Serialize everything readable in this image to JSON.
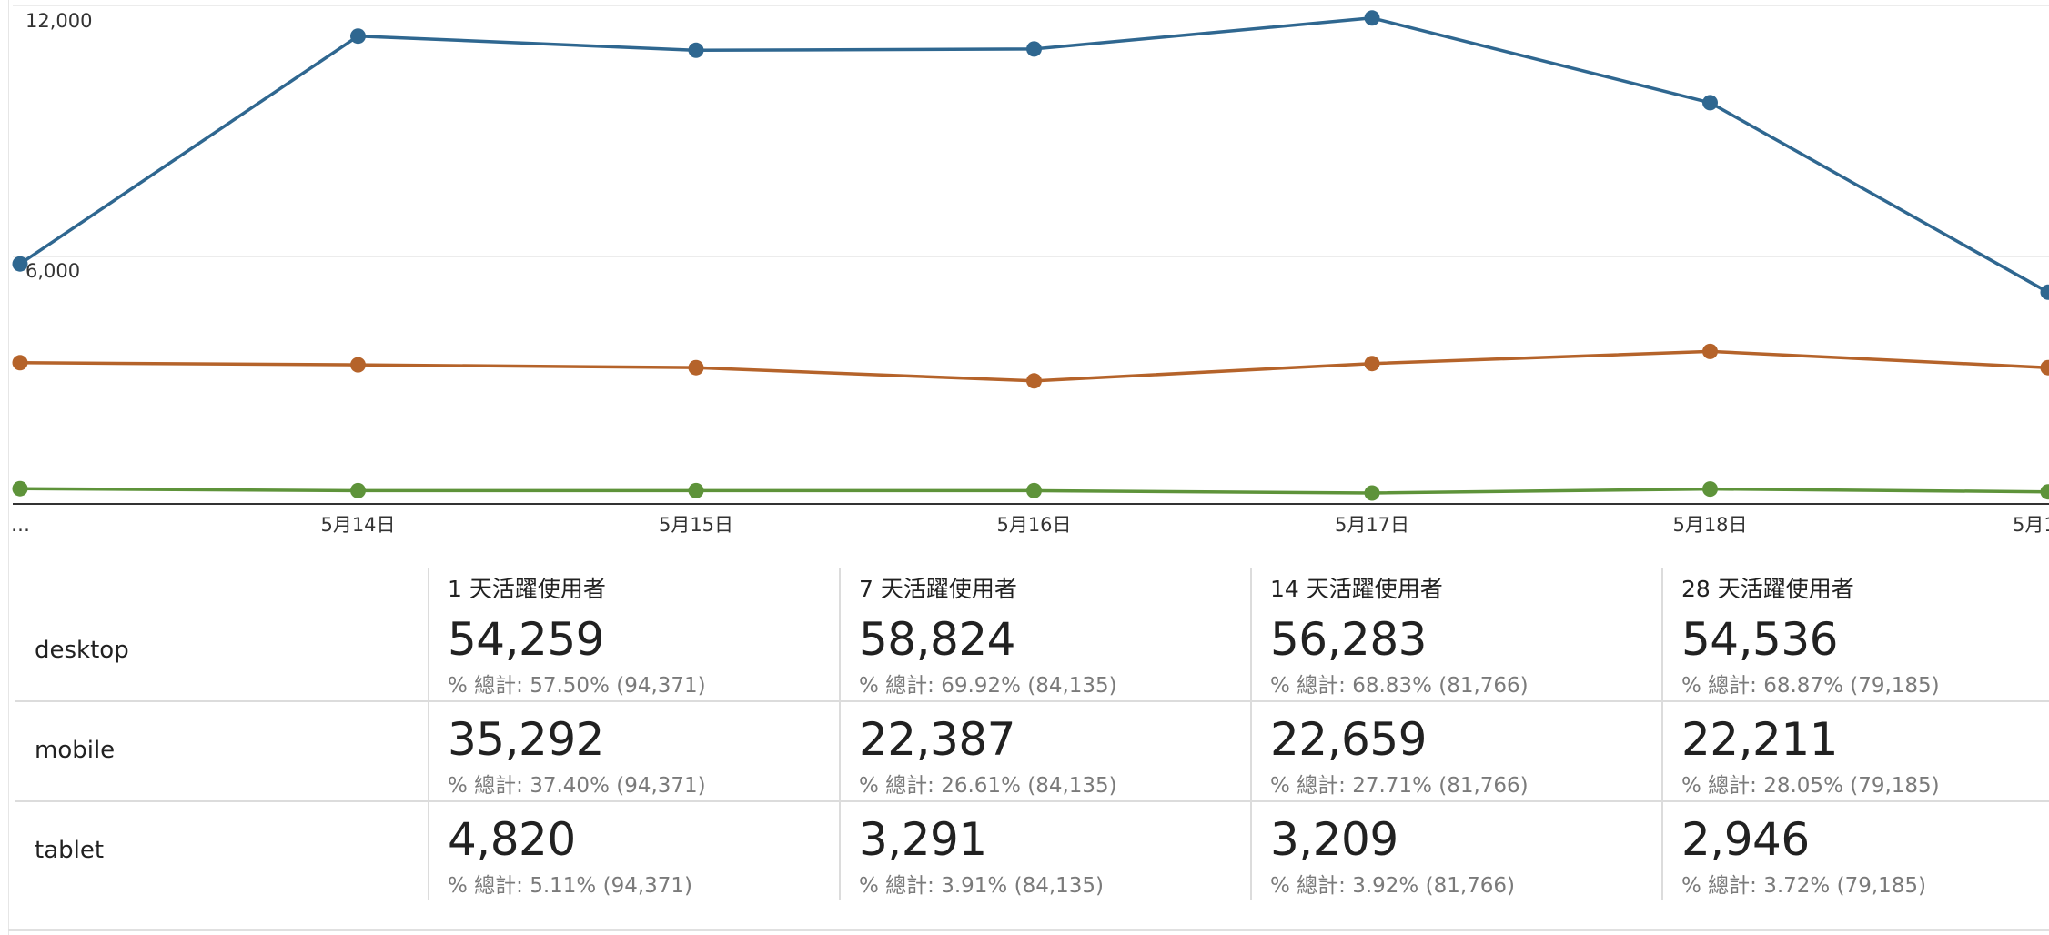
{
  "chart_data": {
    "type": "line",
    "x": [
      "…",
      "5月14日",
      "5月15日",
      "5月16日",
      "5月17日",
      "5月18日",
      "5月1"
    ],
    "y_ticks": [
      "12,000",
      "6,000"
    ],
    "ylim": [
      0,
      12500
    ],
    "grid": true,
    "series": [
      {
        "color": "#2f6790",
        "values": [
          5950,
          11600,
          11250,
          11280,
          12050,
          9950,
          5250
        ]
      },
      {
        "color": "#b5632a",
        "values": [
          3500,
          3450,
          3380,
          3050,
          3480,
          3780,
          3380
        ]
      },
      {
        "color": "#5e933a",
        "values": [
          380,
          330,
          330,
          330,
          270,
          370,
          300
        ]
      }
    ]
  },
  "table": {
    "headers": [
      "1 天活躍使用者",
      "7 天活躍使用者",
      "14 天活躍使用者",
      "28 天活躍使用者"
    ],
    "rows": [
      {
        "label": "desktop",
        "cells": [
          {
            "value": "54,259",
            "pct": "% 總計: 57.50% (94,371)"
          },
          {
            "value": "58,824",
            "pct": "% 總計: 69.92% (84,135)"
          },
          {
            "value": "56,283",
            "pct": "% 總計: 68.83% (81,766)"
          },
          {
            "value": "54,536",
            "pct": "% 總計: 68.87% (79,185)"
          }
        ]
      },
      {
        "label": "mobile",
        "cells": [
          {
            "value": "35,292",
            "pct": "% 總計: 37.40% (94,371)"
          },
          {
            "value": "22,387",
            "pct": "% 總計: 26.61% (84,135)"
          },
          {
            "value": "22,659",
            "pct": "% 總計: 27.71% (81,766)"
          },
          {
            "value": "22,211",
            "pct": "% 總計: 28.05% (79,185)"
          }
        ]
      },
      {
        "label": "tablet",
        "cells": [
          {
            "value": "4,820",
            "pct": "% 總計: 5.11% (94,371)"
          },
          {
            "value": "3,291",
            "pct": "% 總計: 3.91% (84,135)"
          },
          {
            "value": "3,209",
            "pct": "% 總計: 3.92% (81,766)"
          },
          {
            "value": "2,946",
            "pct": "% 總計: 3.72% (79,185)"
          }
        ]
      }
    ]
  }
}
